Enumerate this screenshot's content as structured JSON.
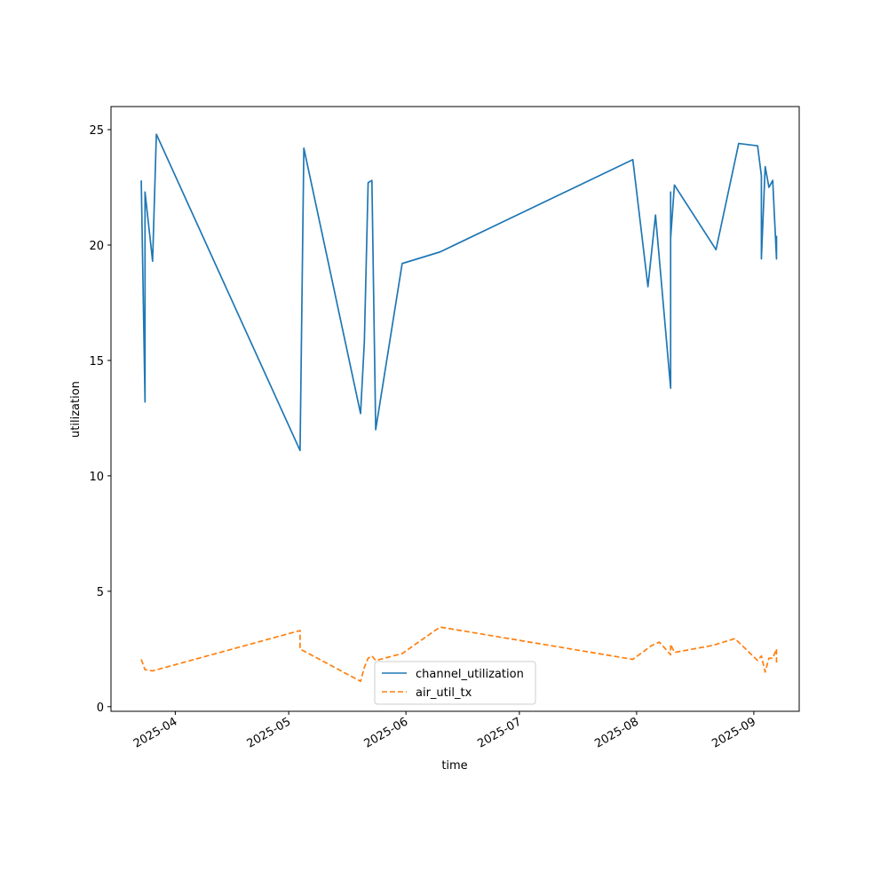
{
  "chart_data": {
    "type": "line",
    "title": "",
    "xlabel": "time",
    "ylabel": "utilization",
    "xlim": [
      "2025-03-15",
      "2025-09-13"
    ],
    "ylim": [
      -0.2,
      26
    ],
    "grid": false,
    "legend_position": "bottom-center",
    "x_ticks": [
      {
        "label": "2025-04",
        "date": "2025-04-01"
      },
      {
        "label": "2025-05",
        "date": "2025-05-01"
      },
      {
        "label": "2025-06",
        "date": "2025-06-01"
      },
      {
        "label": "2025-07",
        "date": "2025-07-01"
      },
      {
        "label": "2025-08",
        "date": "2025-08-01"
      },
      {
        "label": "2025-09",
        "date": "2025-09-01"
      }
    ],
    "y_ticks": [
      0,
      5,
      10,
      15,
      20,
      25
    ],
    "series": [
      {
        "name": "channel_utilization",
        "color": "#1f77b4",
        "style": "solid",
        "points": [
          [
            "2025-03-23",
            22.8
          ],
          [
            "2025-03-24",
            13.2
          ],
          [
            "2025-03-24",
            22.3
          ],
          [
            "2025-03-26",
            19.3
          ],
          [
            "2025-03-27",
            24.8
          ],
          [
            "2025-05-04",
            11.1
          ],
          [
            "2025-05-05",
            24.2
          ],
          [
            "2025-05-20",
            12.7
          ],
          [
            "2025-05-21",
            15.8
          ],
          [
            "2025-05-22",
            22.7
          ],
          [
            "2025-05-23",
            22.8
          ],
          [
            "2025-05-24",
            12.0
          ],
          [
            "2025-05-31",
            19.2
          ],
          [
            "2025-06-10",
            19.7
          ],
          [
            "2025-07-31",
            23.7
          ],
          [
            "2025-08-04",
            18.2
          ],
          [
            "2025-08-06",
            21.3
          ],
          [
            "2025-08-10",
            13.8
          ],
          [
            "2025-08-10",
            22.3
          ],
          [
            "2025-08-10",
            20.3
          ],
          [
            "2025-08-11",
            22.6
          ],
          [
            "2025-08-22",
            19.8
          ],
          [
            "2025-08-28",
            24.4
          ],
          [
            "2025-09-02",
            24.3
          ],
          [
            "2025-09-03",
            23.0
          ],
          [
            "2025-09-03",
            19.4
          ],
          [
            "2025-09-04",
            23.4
          ],
          [
            "2025-09-05",
            22.5
          ],
          [
            "2025-09-06",
            22.8
          ],
          [
            "2025-09-07",
            19.4
          ],
          [
            "2025-09-07",
            20.4
          ]
        ]
      },
      {
        "name": "air_util_tx",
        "color": "#ff7f0e",
        "style": "dashed",
        "points": [
          [
            "2025-03-23",
            2.05
          ],
          [
            "2025-03-24",
            1.6
          ],
          [
            "2025-03-26",
            1.55
          ],
          [
            "2025-05-04",
            3.3
          ],
          [
            "2025-05-04",
            2.5
          ],
          [
            "2025-05-20",
            1.1
          ],
          [
            "2025-05-21",
            1.7
          ],
          [
            "2025-05-22",
            2.1
          ],
          [
            "2025-05-23",
            2.2
          ],
          [
            "2025-05-24",
            2.0
          ],
          [
            "2025-05-31",
            2.3
          ],
          [
            "2025-06-10",
            3.45
          ],
          [
            "2025-07-31",
            2.05
          ],
          [
            "2025-08-05",
            2.65
          ],
          [
            "2025-08-07",
            2.8
          ],
          [
            "2025-08-10",
            2.25
          ],
          [
            "2025-08-10",
            2.7
          ],
          [
            "2025-08-11",
            2.35
          ],
          [
            "2025-08-21",
            2.65
          ],
          [
            "2025-08-27",
            2.95
          ],
          [
            "2025-09-02",
            2.0
          ],
          [
            "2025-09-03",
            2.2
          ],
          [
            "2025-09-04",
            1.5
          ],
          [
            "2025-09-05",
            2.1
          ],
          [
            "2025-09-06",
            2.1
          ],
          [
            "2025-09-07",
            2.5
          ],
          [
            "2025-09-07",
            1.8
          ]
        ]
      }
    ]
  }
}
